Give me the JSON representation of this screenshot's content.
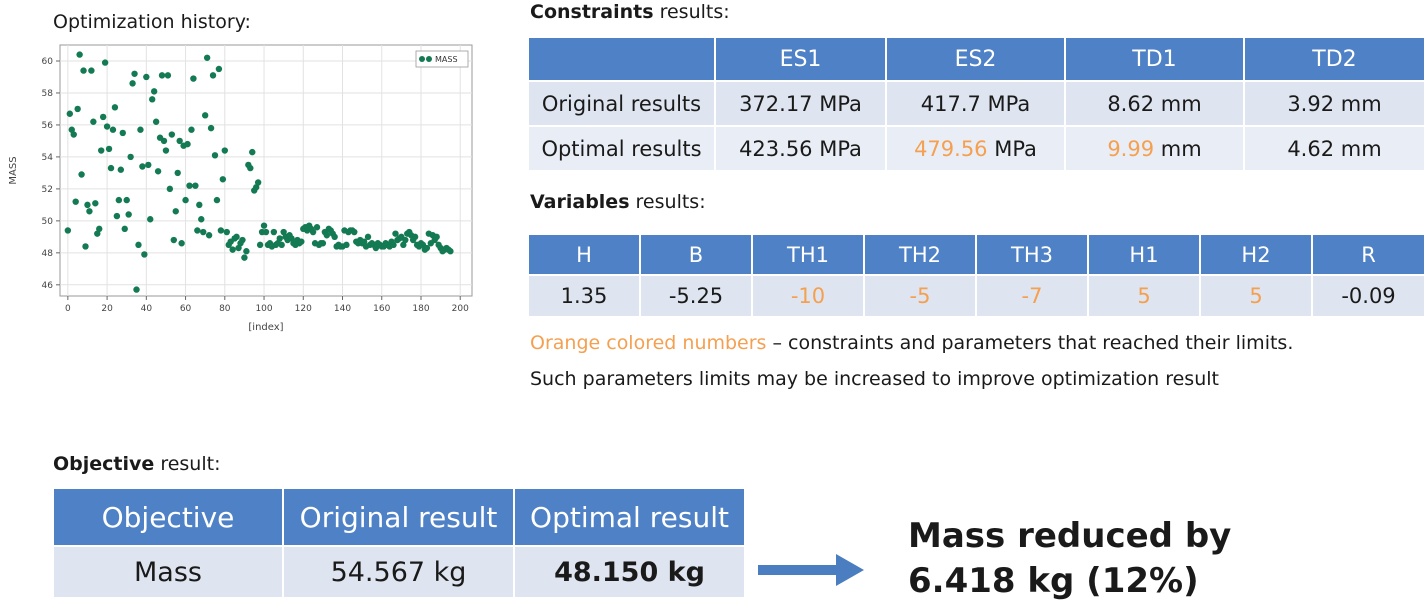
{
  "history": {
    "title": "Optimization history:"
  },
  "chart_data": {
    "type": "scatter",
    "series": [
      {
        "name": "MASS"
      }
    ],
    "xlabel": "[index]",
    "ylabel": "MASS",
    "xlim": [
      -4,
      206
    ],
    "ylim": [
      45.3,
      61
    ],
    "x_ticks": [
      0,
      20,
      40,
      60,
      80,
      100,
      120,
      140,
      160,
      180,
      200
    ],
    "y_ticks": [
      46,
      48,
      50,
      52,
      54,
      56,
      58,
      60
    ],
    "grid": true,
    "legend": "top-right",
    "marker_color": "#137a53",
    "points": [
      [
        0,
        49.4
      ],
      [
        1,
        56.7
      ],
      [
        2,
        55.7
      ],
      [
        3,
        55.4
      ],
      [
        4,
        51.2
      ],
      [
        5,
        57.0
      ],
      [
        6,
        60.4
      ],
      [
        7,
        52.9
      ],
      [
        8,
        59.4
      ],
      [
        9,
        48.4
      ],
      [
        10,
        51.0
      ],
      [
        11,
        50.6
      ],
      [
        12,
        59.4
      ],
      [
        13,
        56.2
      ],
      [
        14,
        51.1
      ],
      [
        15,
        49.2
      ],
      [
        16,
        49.5
      ],
      [
        17,
        54.4
      ],
      [
        18,
        56.5
      ],
      [
        19,
        59.9
      ],
      [
        20,
        55.9
      ],
      [
        21,
        54.5
      ],
      [
        22,
        53.3
      ],
      [
        23,
        55.7
      ],
      [
        24,
        57.1
      ],
      [
        25,
        50.3
      ],
      [
        26,
        51.3
      ],
      [
        27,
        53.2
      ],
      [
        28,
        55.5
      ],
      [
        29,
        49.5
      ],
      [
        30,
        51.3
      ],
      [
        31,
        50.4
      ],
      [
        32,
        54.0
      ],
      [
        33,
        58.6
      ],
      [
        34,
        59.2
      ],
      [
        35,
        45.7
      ],
      [
        36,
        48.5
      ],
      [
        37,
        55.7
      ],
      [
        38,
        53.4
      ],
      [
        39,
        47.9
      ],
      [
        40,
        59.0
      ],
      [
        41,
        53.5
      ],
      [
        42,
        50.1
      ],
      [
        43,
        57.6
      ],
      [
        44,
        58.1
      ],
      [
        45,
        56.2
      ],
      [
        46,
        53.1
      ],
      [
        47,
        55.2
      ],
      [
        48,
        59.1
      ],
      [
        49,
        55.0
      ],
      [
        50,
        54.4
      ],
      [
        51,
        59.1
      ],
      [
        52,
        52.0
      ],
      [
        53,
        55.4
      ],
      [
        54,
        48.8
      ],
      [
        55,
        50.6
      ],
      [
        56,
        53.0
      ],
      [
        57,
        55.0
      ],
      [
        58,
        48.6
      ],
      [
        59,
        54.7
      ],
      [
        60,
        51.3
      ],
      [
        61,
        54.8
      ],
      [
        62,
        52.2
      ],
      [
        63,
        55.7
      ],
      [
        64,
        58.9
      ],
      [
        65,
        52.2
      ],
      [
        66,
        49.4
      ],
      [
        67,
        51.0
      ],
      [
        68,
        50.1
      ],
      [
        69,
        49.3
      ],
      [
        70,
        56.6
      ],
      [
        71,
        60.2
      ],
      [
        72,
        49.1
      ],
      [
        73,
        55.8
      ],
      [
        74,
        59.1
      ],
      [
        75,
        54.1
      ],
      [
        76,
        51.3
      ],
      [
        77,
        59.5
      ],
      [
        78,
        49.4
      ],
      [
        79,
        52.6
      ],
      [
        80,
        54.4
      ],
      [
        81,
        49.3
      ],
      [
        82,
        48.5
      ],
      [
        83,
        48.7
      ],
      [
        84,
        48.2
      ],
      [
        85,
        48.9
      ],
      [
        86,
        49.0
      ],
      [
        87,
        48.3
      ],
      [
        88,
        48.6
      ],
      [
        89,
        48.8
      ],
      [
        90,
        47.7
      ],
      [
        91,
        48.1
      ],
      [
        92,
        53.5
      ],
      [
        93,
        53.3
      ],
      [
        94,
        54.3
      ],
      [
        95,
        51.9
      ],
      [
        96,
        52.1
      ],
      [
        97,
        52.4
      ],
      [
        98,
        48.5
      ],
      [
        99,
        49.3
      ],
      [
        100,
        49.7
      ],
      [
        101,
        49.3
      ],
      [
        102,
        48.5
      ],
      [
        103,
        48.6
      ],
      [
        104,
        48.4
      ],
      [
        105,
        49.3
      ],
      [
        106,
        48.5
      ],
      [
        107,
        48.6
      ],
      [
        108,
        48.9
      ],
      [
        109,
        48.5
      ],
      [
        110,
        49.3
      ],
      [
        111,
        49.0
      ],
      [
        112,
        48.8
      ],
      [
        113,
        49.1
      ],
      [
        114,
        48.9
      ],
      [
        115,
        48.6
      ],
      [
        116,
        48.5
      ],
      [
        117,
        48.8
      ],
      [
        118,
        48.6
      ],
      [
        119,
        48.7
      ],
      [
        120,
        49.5
      ],
      [
        121,
        49.6
      ],
      [
        122,
        49.4
      ],
      [
        123,
        49.7
      ],
      [
        124,
        49.5
      ],
      [
        125,
        49.3
      ],
      [
        126,
        48.6
      ],
      [
        127,
        49.6
      ],
      [
        128,
        48.5
      ],
      [
        129,
        48.6
      ],
      [
        130,
        48.6
      ],
      [
        131,
        49.3
      ],
      [
        132,
        49.1
      ],
      [
        133,
        49.5
      ],
      [
        134,
        49.4
      ],
      [
        135,
        49.2
      ],
      [
        136,
        49.0
      ],
      [
        137,
        48.4
      ],
      [
        138,
        48.5
      ],
      [
        139,
        48.4
      ],
      [
        140,
        48.4
      ],
      [
        141,
        49.4
      ],
      [
        142,
        48.5
      ],
      [
        143,
        49.3
      ],
      [
        144,
        49.4
      ],
      [
        145,
        49.4
      ],
      [
        146,
        49.3
      ],
      [
        147,
        48.7
      ],
      [
        148,
        48.6
      ],
      [
        149,
        48.8
      ],
      [
        150,
        48.6
      ],
      [
        151,
        48.7
      ],
      [
        152,
        48.4
      ],
      [
        153,
        49.0
      ],
      [
        154,
        48.5
      ],
      [
        155,
        48.6
      ],
      [
        156,
        48.5
      ],
      [
        157,
        48.3
      ],
      [
        158,
        48.6
      ],
      [
        159,
        48.5
      ],
      [
        160,
        48.4
      ],
      [
        161,
        48.4
      ],
      [
        162,
        48.6
      ],
      [
        163,
        48.5
      ],
      [
        164,
        48.4
      ],
      [
        165,
        48.7
      ],
      [
        166,
        48.5
      ],
      [
        167,
        49.2
      ],
      [
        168,
        48.8
      ],
      [
        169,
        48.9
      ],
      [
        170,
        49.0
      ],
      [
        171,
        48.5
      ],
      [
        172,
        48.8
      ],
      [
        173,
        49.2
      ],
      [
        174,
        49.3
      ],
      [
        175,
        49.1
      ],
      [
        176,
        48.8
      ],
      [
        177,
        49.0
      ],
      [
        178,
        48.5
      ],
      [
        179,
        48.4
      ],
      [
        180,
        48.6
      ],
      [
        181,
        48.5
      ],
      [
        182,
        48.2
      ],
      [
        183,
        48.3
      ],
      [
        184,
        49.2
      ],
      [
        185,
        48.6
      ],
      [
        186,
        49.1
      ],
      [
        187,
        48.8
      ],
      [
        188,
        49.0
      ],
      [
        189,
        48.5
      ],
      [
        190,
        48.3
      ],
      [
        191,
        48.1
      ],
      [
        192,
        48.2
      ],
      [
        193,
        48.3
      ],
      [
        194,
        48.2
      ],
      [
        195,
        48.1
      ]
    ]
  },
  "constraints": {
    "label_bold": "Constraints",
    "label_rest": " results:",
    "headers": [
      "ES1",
      "ES2",
      "TD1",
      "TD2"
    ],
    "rows": [
      {
        "name": "Original results",
        "cells": [
          {
            "num": "372.17",
            "unit": " MPa",
            "limit": false
          },
          {
            "num": "417.7",
            "unit": " MPa",
            "limit": false
          },
          {
            "num": "8.62",
            "unit": " mm",
            "limit": false
          },
          {
            "num": "3.92",
            "unit": " mm",
            "limit": false
          }
        ]
      },
      {
        "name": "Optimal results",
        "cells": [
          {
            "num": "423.56",
            "unit": " MPa",
            "limit": false
          },
          {
            "num": "479.56",
            "unit": " MPa",
            "limit": true
          },
          {
            "num": "9.99",
            "unit": " mm",
            "limit": true
          },
          {
            "num": "4.62",
            "unit": " mm",
            "limit": false
          }
        ]
      }
    ]
  },
  "variables": {
    "label_bold": "Variables",
    "label_rest": " results:",
    "headers": [
      "H",
      "B",
      "TH1",
      "TH2",
      "TH3",
      "H1",
      "H2",
      "R"
    ],
    "values": [
      {
        "v": "1.35",
        "limit": false
      },
      {
        "v": "-5.25",
        "limit": false
      },
      {
        "v": "-10",
        "limit": true
      },
      {
        "v": "-5",
        "limit": true
      },
      {
        "v": "-7",
        "limit": true
      },
      {
        "v": "5",
        "limit": true
      },
      {
        "v": "5",
        "limit": true
      },
      {
        "v": "-0.09",
        "limit": false
      }
    ]
  },
  "note": {
    "orange_text": "Orange colored numbers",
    "line1_rest": " – constraints and parameters that reached their limits.",
    "line2": "Such parameters limits may be increased to improve optimization result"
  },
  "objective": {
    "label_bold": "Objective",
    "label_rest": " result:",
    "headers": [
      "Objective",
      "Original result",
      "Optimal result"
    ],
    "row": {
      "name": "Mass",
      "original": "54.567 kg",
      "optimal": "48.150 kg"
    }
  },
  "summary": {
    "line1": "Mass reduced by",
    "line2": "6.418 kg (12%)"
  },
  "colors": {
    "header_blue": "#4f81c6",
    "cell_bg": "#dfe5f0",
    "limit_orange": "#f5a050",
    "arrow_blue": "#4a7ec0",
    "marker_green": "#137a53"
  }
}
